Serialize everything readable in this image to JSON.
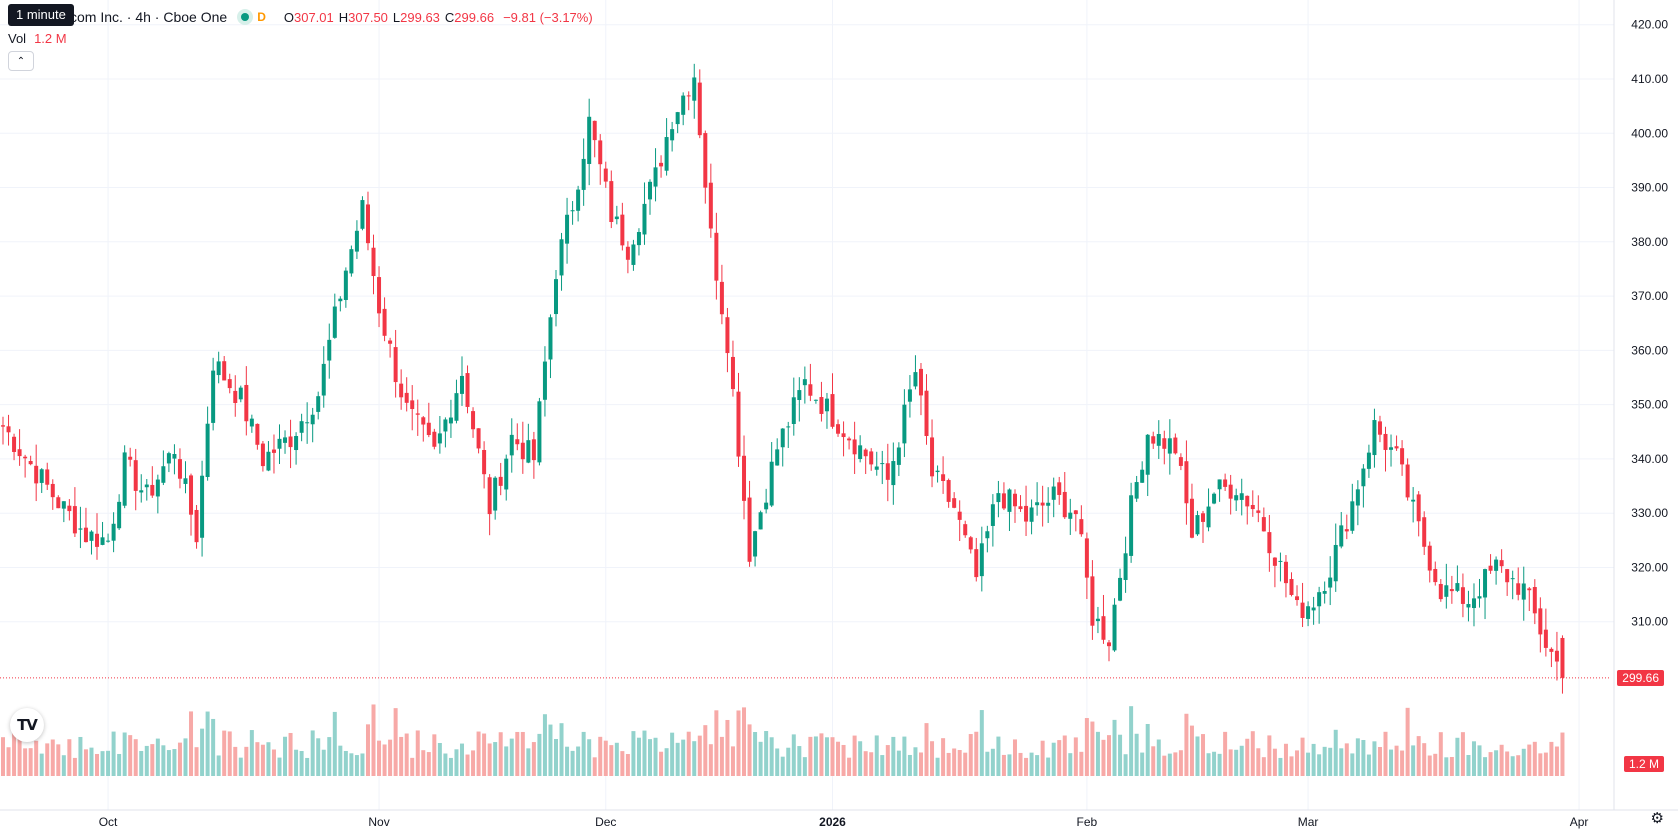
{
  "legend": {
    "title": "com Inc. · 4h · Cboe One",
    "interval_letter": "D",
    "open_label": "O",
    "open": "307.01",
    "high_label": "H",
    "high": "307.50",
    "low_label": "L",
    "low": "299.63",
    "close_label": "C",
    "close": "299.66",
    "change": "−9.81 (−3.17%)"
  },
  "tooltip": {
    "text": "1 minute"
  },
  "volume_legend": {
    "label": "Vol",
    "value": "1.2 M"
  },
  "price_axis": {
    "current_price_tag": "299.66",
    "current_volume_tag": "1.2 M"
  },
  "colors": {
    "up": "#089981",
    "down": "#f23645",
    "up_volume": "#92d2cc",
    "down_volume": "#f7a9a7",
    "grid": "#f0f3fa"
  },
  "chart_data": {
    "type": "candlestick",
    "timeframe": "4h",
    "y_ticks": [
      "310.00",
      "320.00",
      "330.00",
      "340.00",
      "350.00",
      "360.00",
      "370.00",
      "380.00",
      "390.00",
      "400.00",
      "410.00",
      "420.00"
    ],
    "ylim": [
      286,
      424
    ],
    "x_ticks": [
      {
        "label": "Oct",
        "index": 19
      },
      {
        "label": "Nov",
        "index": 68
      },
      {
        "label": "Dec",
        "index": 109
      },
      {
        "label": "2026",
        "index": 150
      },
      {
        "label": "Feb",
        "index": 196
      },
      {
        "label": "Mar",
        "index": 236
      },
      {
        "label": "Apr",
        "index": 285
      }
    ],
    "grid": true,
    "last_price": 299.66,
    "anchors": [
      [
        0,
        346
      ],
      [
        5,
        339
      ],
      [
        10,
        332
      ],
      [
        15,
        326
      ],
      [
        19,
        325
      ],
      [
        22,
        339
      ],
      [
        26,
        333
      ],
      [
        31,
        342
      ],
      [
        35,
        326
      ],
      [
        38,
        358
      ],
      [
        43,
        351
      ],
      [
        47,
        340
      ],
      [
        52,
        344
      ],
      [
        57,
        352
      ],
      [
        62,
        375
      ],
      [
        65,
        386
      ],
      [
        68,
        368
      ],
      [
        71,
        356
      ],
      [
        73,
        349
      ],
      [
        78,
        341
      ],
      [
        83,
        356
      ],
      [
        88,
        331
      ],
      [
        92,
        344
      ],
      [
        96,
        340
      ],
      [
        100,
        375
      ],
      [
        103,
        387
      ],
      [
        106,
        402
      ],
      [
        110,
        385
      ],
      [
        113,
        379
      ],
      [
        118,
        392
      ],
      [
        121,
        403
      ],
      [
        125,
        411
      ],
      [
        128,
        381
      ],
      [
        131,
        362
      ],
      [
        135,
        323
      ],
      [
        140,
        342
      ],
      [
        145,
        354
      ],
      [
        150,
        348
      ],
      [
        155,
        342
      ],
      [
        160,
        336
      ],
      [
        165,
        356
      ],
      [
        168,
        337
      ],
      [
        172,
        331
      ],
      [
        176,
        318
      ],
      [
        180,
        334
      ],
      [
        185,
        329
      ],
      [
        190,
        333
      ],
      [
        194,
        330
      ],
      [
        197,
        311
      ],
      [
        200,
        307
      ],
      [
        204,
        331
      ],
      [
        207,
        345
      ],
      [
        212,
        342
      ],
      [
        215,
        326
      ],
      [
        219,
        334
      ],
      [
        223,
        335
      ],
      [
        227,
        330
      ],
      [
        231,
        320
      ],
      [
        234,
        312
      ],
      [
        237,
        314
      ],
      [
        240,
        320
      ],
      [
        244,
        332
      ],
      [
        248,
        346
      ],
      [
        252,
        340
      ],
      [
        256,
        327
      ],
      [
        260,
        316
      ],
      [
        265,
        314
      ],
      [
        270,
        320
      ],
      [
        275,
        316
      ],
      [
        279,
        306
      ],
      [
        282,
        300.5
      ]
    ],
    "volume_scale_max": "1.2 M"
  }
}
